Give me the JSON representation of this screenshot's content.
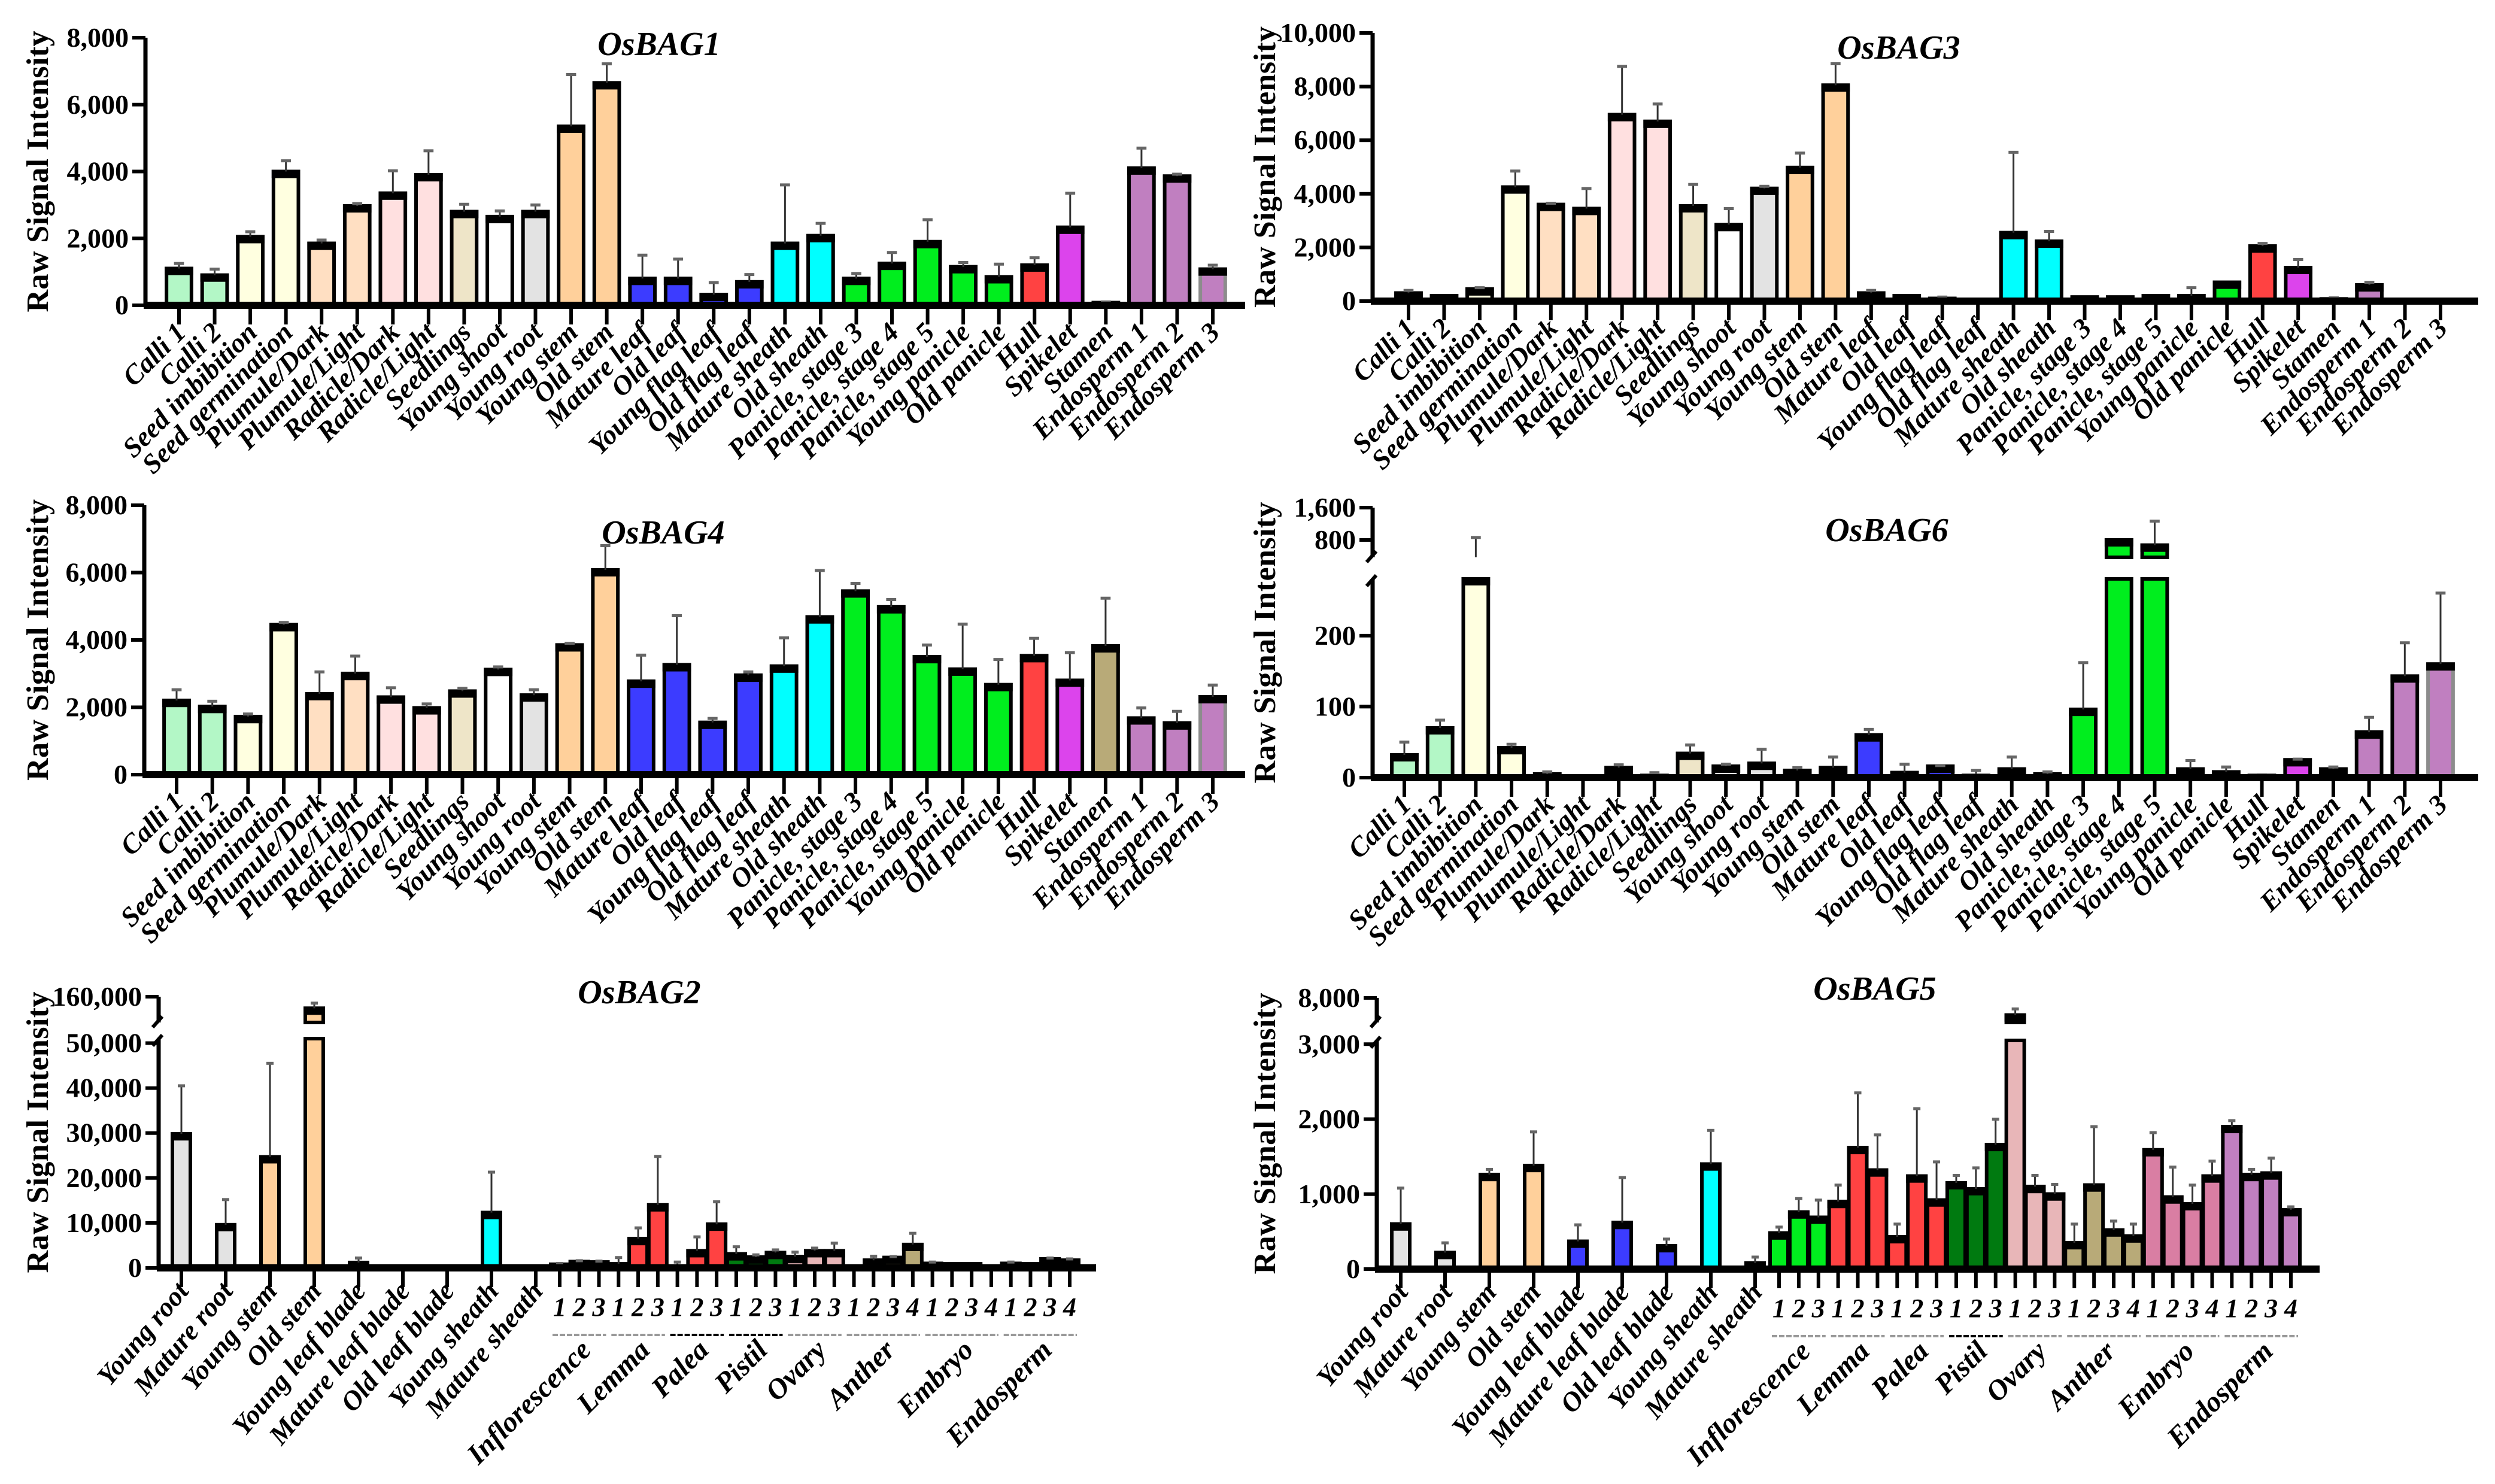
{
  "palette": {
    "calli": "#b3f7c6",
    "seed": "#ffffe0",
    "plumule": "#ffdfc2",
    "radicle": "#ffe0e0",
    "seedlings": "#eee5c8",
    "shoot": "#ffffff",
    "root": "#e3e3e3",
    "stem": "#ffd09b",
    "leaf": "#3c3cff",
    "sheath": "#00ffff",
    "panicle": "#00ee1e",
    "hull": "#ff4242",
    "spikelet": "#dc44ec",
    "stamen": "#b8aa78",
    "endosperm": "#c07fc0",
    "infl": "#00ee1e",
    "lemma": "#ff4242",
    "pistil": "#007a10",
    "ovary": "#e8b6b8",
    "anther": "#b8aa78",
    "embryo": "#d97ea3",
    "alt_outline": "#8c8c8c"
  },
  "color_sets": {
    "A": [
      "calli",
      "calli",
      "seed",
      "seed",
      "plumule",
      "plumule",
      "radicle",
      "radicle",
      "seedlings",
      "shoot",
      "root",
      "stem",
      "stem",
      "leaf",
      "leaf",
      "leaf",
      "leaf",
      "sheath",
      "sheath",
      "panicle",
      "panicle",
      "panicle",
      "panicle",
      "panicle",
      "hull",
      "spikelet",
      "stamen",
      "endosperm",
      "endosperm",
      "endosperm_alt"
    ],
    "B": [
      "root",
      "root",
      "stem",
      "stem",
      "leaf",
      "leaf",
      "leaf",
      "sheath",
      "sheath",
      "infl",
      "infl",
      "infl",
      "lemma",
      "lemma",
      "lemma",
      "lemma",
      "lemma",
      "lemma",
      "pistil",
      "pistil",
      "pistil",
      "ovary",
      "ovary",
      "ovary",
      "anther",
      "anther",
      "anther",
      "anther",
      "embryo",
      "embryo",
      "embryo",
      "embryo",
      "endosperm",
      "endosperm",
      "endosperm",
      "endosperm"
    ]
  },
  "chart_data": [
    {
      "type": "bar",
      "title": "OsBAG1",
      "ylabel": "Raw Signal Intensity",
      "xlabel": "",
      "ylim": [
        0,
        8000
      ],
      "grid": false,
      "color_set": "A",
      "yticks": [
        0,
        2000,
        4000,
        6000,
        8000
      ],
      "ytick_labels": [
        "0",
        "2,000",
        "4,000",
        "6,000",
        "8,000"
      ],
      "categories": [
        "Calli 1",
        "Calli 2",
        "Seed imbibition",
        "Seed germination",
        "Plumule/Dark",
        "Plumule/Light",
        "Radicle/Dark",
        "Radicle/Light",
        "Seedlings",
        "Young shoot",
        "Young root",
        "Young stem",
        "Old stem",
        "Mature leaf",
        "Old leaf",
        "Young flag leaf",
        "Old flag leaf",
        "Mature sheath",
        "Old sheath",
        "Panicle, stage 3",
        "Panicle, stage 4",
        "Panicle, stage 5",
        "Young panicle",
        "Old panicle",
        "Hull",
        "Spikelet",
        "Stamen",
        "Endosperm 1",
        "Endosperm 2",
        "Endosperm 3"
      ],
      "values": [
        1100,
        900,
        2050,
        4000,
        1850,
        2970,
        3350,
        3900,
        2800,
        2650,
        2800,
        5350,
        6650,
        800,
        800,
        320,
        700,
        1850,
        2080,
        800,
        1250,
        1900,
        1150,
        850,
        1200,
        2330,
        80,
        4100,
        3860,
        1080
      ],
      "error_bar_top": [
        1250,
        1080,
        2200,
        4320,
        1950,
        3040,
        4020,
        4620,
        3020,
        2820,
        3000,
        6900,
        7220,
        1500,
        1380,
        680,
        920,
        3600,
        2450,
        950,
        1580,
        2560,
        1280,
        1230,
        1420,
        3350,
        100,
        4700,
        3920,
        1200
      ]
    },
    {
      "type": "bar",
      "title": "OsBAG3",
      "ylabel": "Raw Signal Intensity",
      "xlabel": "",
      "ylim": [
        0,
        10000
      ],
      "grid": false,
      "color_set": "A",
      "yticks": [
        0,
        2000,
        4000,
        6000,
        8000,
        10000
      ],
      "ytick_labels": [
        "0",
        "2,000",
        "4,000",
        "6,000",
        "8,000",
        "10,000"
      ],
      "categories": [
        "Calli 1",
        "Calli 2",
        "Seed imbibition",
        "Seed germination",
        "Plumule/Dark",
        "Plumule/Light",
        "Radicle/Dark",
        "Radicle/Light",
        "Seedlings",
        "Young shoot",
        "Young root",
        "Young stem",
        "Old stem",
        "Mature leaf",
        "Old leaf",
        "Young flag leaf",
        "Old flag leaf",
        "Mature sheath",
        "Old sheath",
        "Panicle, stage 3",
        "Panicle, stage 4",
        "Panicle, stage 5",
        "Young panicle",
        "Old panicle",
        "Hull",
        "Spikelet",
        "Stamen",
        "Endosperm 1",
        "Endosperm 2",
        "Endosperm 3"
      ],
      "values": [
        300,
        200,
        450,
        4250,
        3600,
        3450,
        6950,
        6700,
        3550,
        2850,
        4200,
        4980,
        8050,
        300,
        200,
        100,
        0,
        2550,
        2230,
        150,
        150,
        200,
        200,
        700,
        2050,
        1250,
        80,
        600,
        50,
        0
      ],
      "error_bar_top": [
        400,
        220,
        500,
        4850,
        3650,
        4200,
        8750,
        7350,
        4350,
        3450,
        4280,
        5520,
        8850,
        400,
        220,
        150,
        0,
        5550,
        2600,
        170,
        170,
        210,
        500,
        720,
        2150,
        1550,
        120,
        700,
        60,
        0
      ]
    },
    {
      "type": "bar",
      "title": "OsBAG4",
      "ylabel": "Raw Signal Intensity",
      "xlabel": "",
      "ylim": [
        0,
        8000
      ],
      "grid": false,
      "color_set": "A",
      "yticks": [
        0,
        2000,
        4000,
        6000,
        8000
      ],
      "ytick_labels": [
        "0",
        "2,000",
        "4,000",
        "6,000",
        "8,000"
      ],
      "categories": [
        "Calli 1",
        "Calli 2",
        "Seed imbibition",
        "Seed germination",
        "Plumule/Dark",
        "Plumule/Light",
        "Radicle/Dark",
        "Radicle/Light",
        "Seedlings",
        "Young shoot",
        "Young root",
        "Young stem",
        "Old stem",
        "Mature leaf",
        "Old leaf",
        "Young flag leaf",
        "Old flag leaf",
        "Mature sheath",
        "Old sheath",
        "Panicle, stage 3",
        "Panicle, stage 4",
        "Panicle, stage 5",
        "Young panicle",
        "Old panicle",
        "Hull",
        "Spikelet",
        "Stamen",
        "Endosperm 1",
        "Endosperm 2",
        "Endosperm 3"
      ],
      "values": [
        2200,
        2020,
        1720,
        4450,
        2400,
        3000,
        2300,
        1980,
        2480,
        3120,
        2360,
        3850,
        6080,
        2770,
        3260,
        1550,
        2950,
        3220,
        4680,
        5450,
        4980,
        3500,
        3130,
        2670,
        3530,
        2800,
        3820,
        1680,
        1530,
        2310
      ],
      "error_bar_top": [
        2520,
        2180,
        1800,
        4520,
        3050,
        3520,
        2580,
        2100,
        2560,
        3200,
        2520,
        3900,
        6800,
        3550,
        4720,
        1670,
        3050,
        4060,
        6060,
        5680,
        5200,
        3850,
        4470,
        3420,
        4050,
        3620,
        5240,
        1980,
        1880,
        2660
      ]
    },
    {
      "type": "bar",
      "title": "OsBAG6",
      "ylabel": "Raw Signal Intensity",
      "xlabel": "",
      "ylim_lower": [
        0,
        280
      ],
      "ylim_upper": [
        370,
        1600
      ],
      "grid": false,
      "color_set": "A",
      "yticks": [
        0,
        100,
        200
      ],
      "ytick_labels": [
        "0",
        "100",
        "200"
      ],
      "yticks_upper": [
        800,
        1600
      ],
      "ytick_labels_upper": [
        "800",
        "1,600"
      ],
      "categories": [
        "Calli 1",
        "Calli 2",
        "Seed imbibition",
        "Seed germination",
        "Plumule/Dark",
        "Plumule/Light",
        "Radicle/Dark",
        "Radicle/Light",
        "Seedlings",
        "Young shoot",
        "Young root",
        "Young stem",
        "Old stem",
        "Mature leaf",
        "Old leaf",
        "Young flag leaf",
        "Old flag leaf",
        "Mature sheath",
        "Old sheath",
        "Panicle, stage 3",
        "Panicle, stage 4",
        "Panicle, stage 5",
        "Young panicle",
        "Old panicle",
        "Hull",
        "Spikelet",
        "Stamen",
        "Endosperm 1",
        "Endosperm 2",
        "Endosperm 3"
      ],
      "values": [
        32,
        70,
        300,
        42,
        5,
        1,
        14,
        3,
        34,
        16,
        20,
        10,
        14,
        60,
        7,
        16,
        3,
        12,
        5,
        96,
        800,
        670,
        12,
        8,
        3,
        25,
        12,
        64,
        143,
        160
      ],
      "error_bar_top": [
        50,
        81,
        860,
        47,
        8,
        1,
        18,
        7,
        46,
        19,
        40,
        14,
        29,
        68,
        19,
        17,
        10,
        29,
        8,
        162,
        800,
        1266,
        24,
        15,
        4,
        26,
        15,
        85,
        190,
        260
      ]
    },
    {
      "type": "bar",
      "title": "OsBAG2",
      "ylabel": "Raw Signal Intensity",
      "xlabel": "",
      "ylim_lower": [
        0,
        51000
      ],
      "ylim_upper": [
        140000,
        160000
      ],
      "grid": false,
      "color_set": "B",
      "yticks": [
        0,
        10000,
        20000,
        30000,
        40000,
        50000
      ],
      "ytick_labels": [
        "0",
        "10,000",
        "20,000",
        "30,000",
        "40,000",
        "50,000"
      ],
      "yticks_upper": [
        160000
      ],
      "ytick_labels_upper": [
        "160,000"
      ],
      "categories": [
        "Young root",
        "Mature root",
        "Young stem",
        "Old stem",
        "Young leaf blade",
        "Mature leaf blade",
        "Old leaf blade",
        "Young sheath",
        "Mature sheath",
        "1",
        "2",
        "3",
        "1",
        "2",
        "3",
        "1",
        "2",
        "3",
        "1",
        "2",
        "3",
        "1",
        "2",
        "3",
        "1",
        "2",
        "3",
        "4",
        "1",
        "2",
        "3",
        "4",
        "1",
        "2",
        "3",
        "4"
      ],
      "named_count": 9,
      "groups": [
        {
          "label": "Inflorescence",
          "count": 3,
          "color": "#999999"
        },
        {
          "label": "Lemma",
          "count": 3,
          "color": "#999999"
        },
        {
          "label": "Palea",
          "count": 3,
          "color": "#000000"
        },
        {
          "label": "Pistil",
          "count": 3,
          "color": "#000000"
        },
        {
          "label": "Ovary",
          "count": 3,
          "color": "#999999"
        },
        {
          "label": "Anther",
          "count": 4,
          "color": "#999999"
        },
        {
          "label": "Embryo",
          "count": 4,
          "color": "#999999"
        },
        {
          "label": "Endosperm",
          "count": 4,
          "color": "#999999"
        }
      ],
      "values": [
        29800,
        9600,
        24700,
        151000,
        1200,
        0,
        0,
        12300,
        0,
        800,
        1400,
        1300,
        900,
        6500,
        14000,
        100,
        3800,
        9700,
        3100,
        2400,
        3400,
        2500,
        3800,
        3800,
        100,
        1700,
        2300,
        5200,
        1000,
        900,
        900,
        200,
        1000,
        900,
        2000,
        1700
      ],
      "error_bar_top": [
        40500,
        15200,
        45500,
        155000,
        2200,
        0,
        0,
        21300,
        0,
        1000,
        1600,
        1500,
        2300,
        8900,
        24800,
        1300,
        6900,
        14700,
        4700,
        2900,
        4000,
        3500,
        4400,
        5500,
        300,
        2600,
        2500,
        7700,
        1300,
        1000,
        1000,
        300,
        1300,
        1000,
        2200,
        2000
      ]
    },
    {
      "type": "bar",
      "title": "OsBAG5",
      "ylabel": "Raw Signal Intensity",
      "xlabel": "",
      "ylim_lower": [
        0,
        3050
      ],
      "ylim_upper": [
        7000,
        8000
      ],
      "grid": false,
      "color_set": "B",
      "yticks": [
        0,
        1000,
        2000,
        3000
      ],
      "ytick_labels": [
        "0",
        "1,000",
        "2,000",
        "3,000"
      ],
      "yticks_upper": [
        8000
      ],
      "ytick_labels_upper": [
        "8,000"
      ],
      "categories": [
        "Young root",
        "Mature root",
        "Young stem",
        "Old stem",
        "Young leaf blade",
        "Mature leaf blade",
        "Old leaf blade",
        "Young sheath",
        "Mature sheath",
        "1",
        "2",
        "3",
        "1",
        "2",
        "3",
        "1",
        "2",
        "3",
        "1",
        "2",
        "3",
        "1",
        "2",
        "3",
        "1",
        "2",
        "3",
        "4",
        "1",
        "2",
        "3",
        "4",
        "1",
        "2",
        "3",
        "4"
      ],
      "named_count": 9,
      "groups": [
        {
          "label": "Inflorescence",
          "count": 3,
          "color": "#999999"
        },
        {
          "label": "Lemma",
          "count": 3,
          "color": "#999999"
        },
        {
          "label": "Palea",
          "count": 3,
          "color": "#999999"
        },
        {
          "label": "Pistil",
          "count": 3,
          "color": "#000000"
        },
        {
          "label": "Ovary",
          "count": 3,
          "color": "#999999"
        },
        {
          "label": "Anther",
          "count": 4,
          "color": "#999999"
        },
        {
          "label": "Embryo",
          "count": 4,
          "color": "#999999"
        },
        {
          "label": "Endosperm",
          "count": 4,
          "color": "#999999"
        }
      ],
      "values": [
        600,
        220,
        1260,
        1380,
        370,
        620,
        310,
        1400,
        80,
        480,
        760,
        690,
        900,
        1620,
        1320,
        430,
        1240,
        920,
        1150,
        1070,
        1660,
        7300,
        1100,
        1000,
        350,
        1120,
        520,
        440,
        1590,
        960,
        870,
        1240,
        1900,
        1260,
        1280,
        790
      ],
      "error_bar_top": [
        1080,
        350,
        1330,
        1830,
        590,
        1220,
        400,
        1850,
        160,
        560,
        940,
        920,
        1120,
        2350,
        1790,
        600,
        2140,
        1430,
        1250,
        1350,
        2000,
        7550,
        1250,
        1130,
        600,
        1900,
        640,
        600,
        1820,
        1360,
        1120,
        1440,
        1980,
        1330,
        1480,
        830
      ]
    }
  ]
}
